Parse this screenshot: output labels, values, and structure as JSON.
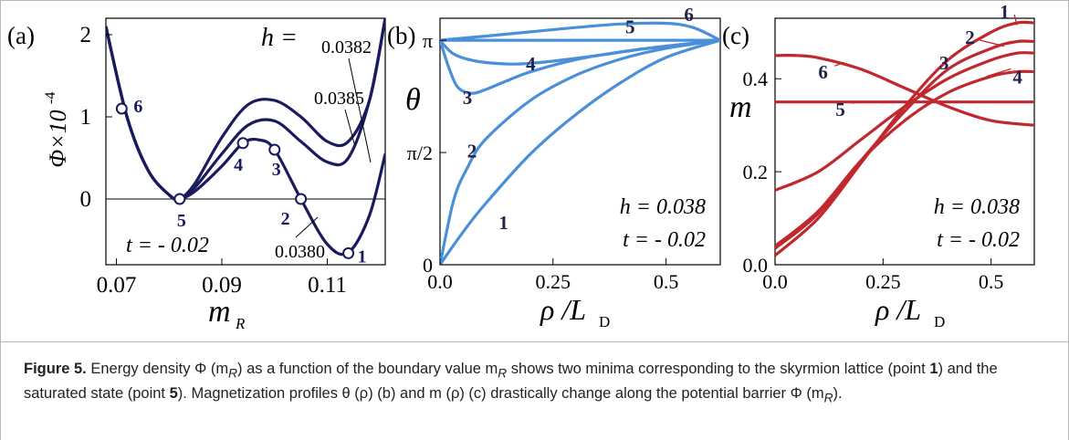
{
  "panels": [
    {
      "id": "a",
      "panel_label": "(a)",
      "xlabel_main": "m",
      "xlabel_sub": "R",
      "ylabel": "Φ×10",
      "ylabel_exp": "-4",
      "annotations": {
        "h_label": "h =",
        "h_values": [
          "0.0382",
          "0.0385",
          "0.0380"
        ],
        "t_label": "t = - 0.02"
      },
      "point_labels": [
        "1",
        "2",
        "3",
        "4",
        "5",
        "6"
      ]
    },
    {
      "id": "b",
      "panel_label": "(b)",
      "xlabel": "ρ /L",
      "xlabel_sub": "D",
      "ylabel": "θ",
      "annotations": {
        "h_text": "h = 0.038",
        "t_text": "t = - 0.02"
      },
      "curve_labels": [
        "1",
        "2",
        "3",
        "4",
        "5",
        "6"
      ]
    },
    {
      "id": "c",
      "panel_label": "(c)",
      "xlabel": "ρ /L",
      "xlabel_sub": "D",
      "ylabel": "m",
      "annotations": {
        "h_text": "h = 0.038",
        "t_text": "t = - 0.02"
      },
      "curve_labels": [
        "1",
        "2",
        "3",
        "4",
        "5",
        "6"
      ]
    }
  ],
  "chart_data": [
    {
      "type": "line",
      "panel": "a",
      "xlabel": "m_R",
      "ylabel": "Φ×10^-4",
      "xlim": [
        0.068,
        0.121
      ],
      "ylim": [
        -0.8,
        2.2
      ],
      "xticks": [
        "0.07",
        "0.09",
        "0.11"
      ],
      "yticks": [
        "0",
        "1",
        "2"
      ],
      "colors": {
        "curve": "#1a1a5e"
      },
      "series": [
        {
          "name": "0.0382",
          "x": [
            0.068,
            0.072,
            0.076,
            0.08,
            0.082,
            0.085,
            0.09,
            0.095,
            0.1,
            0.105,
            0.11,
            0.114,
            0.118,
            0.121
          ],
          "y": [
            2.1,
            1.0,
            0.35,
            0.05,
            0.0,
            0.15,
            0.55,
            0.9,
            0.95,
            0.7,
            0.45,
            0.5,
            1.2,
            2.2
          ]
        },
        {
          "name": "0.0385",
          "x": [
            0.068,
            0.072,
            0.076,
            0.08,
            0.082,
            0.085,
            0.09,
            0.095,
            0.1,
            0.105,
            0.11,
            0.114,
            0.118,
            0.121
          ],
          "y": [
            2.1,
            1.0,
            0.35,
            0.05,
            0.0,
            0.2,
            0.75,
            1.15,
            1.2,
            1.0,
            0.7,
            0.7,
            1.2,
            2.2
          ]
        },
        {
          "name": "0.0380",
          "x": [
            0.068,
            0.072,
            0.076,
            0.08,
            0.082,
            0.085,
            0.09,
            0.094,
            0.097,
            0.1,
            0.105,
            0.11,
            0.114,
            0.118,
            0.121
          ],
          "y": [
            2.1,
            1.0,
            0.35,
            0.05,
            0.0,
            0.1,
            0.4,
            0.68,
            0.72,
            0.6,
            0.0,
            -0.55,
            -0.65,
            -0.2,
            0.55
          ]
        }
      ],
      "points": [
        {
          "label": "1",
          "x": 0.114,
          "y": -0.66
        },
        {
          "label": "2",
          "x": 0.105,
          "y": 0.0
        },
        {
          "label": "3",
          "x": 0.1,
          "y": 0.6
        },
        {
          "label": "4",
          "x": 0.094,
          "y": 0.68
        },
        {
          "label": "5",
          "x": 0.082,
          "y": 0.0
        },
        {
          "label": "6",
          "x": 0.071,
          "y": 1.1
        }
      ]
    },
    {
      "type": "line",
      "panel": "b",
      "xlabel": "ρ/L_D",
      "ylabel": "θ",
      "xlim": [
        0,
        0.62
      ],
      "ylim": [
        0,
        3.45
      ],
      "xticks": [
        {
          "v": 0,
          "label": "0.0"
        },
        {
          "v": 0.25,
          "label": "0.25"
        },
        {
          "v": 0.5,
          "label": "0.5"
        }
      ],
      "yticks": [
        {
          "v": 0,
          "label": "0"
        },
        {
          "v": 1.5708,
          "label": "π/2"
        },
        {
          "v": 3.1416,
          "label": "π"
        }
      ],
      "colors": {
        "curve": "#4a90d9"
      },
      "series": [
        {
          "name": "1",
          "x": [
            0,
            0.05,
            0.1,
            0.2,
            0.3,
            0.4,
            0.5,
            0.62
          ],
          "y": [
            0,
            0.45,
            0.85,
            1.55,
            2.1,
            2.55,
            2.9,
            3.1416
          ]
        },
        {
          "name": "2",
          "x": [
            0,
            0.03,
            0.06,
            0.1,
            0.2,
            0.3,
            0.4,
            0.5,
            0.62
          ],
          "y": [
            0,
            0.9,
            1.35,
            1.75,
            2.3,
            2.65,
            2.88,
            3.03,
            3.1416
          ]
        },
        {
          "name": "3",
          "x": [
            0,
            0.02,
            0.04,
            0.07,
            0.1,
            0.15,
            0.2,
            0.3,
            0.4,
            0.5,
            0.62
          ],
          "y": [
            3.1416,
            2.75,
            2.48,
            2.4,
            2.45,
            2.58,
            2.7,
            2.87,
            2.98,
            3.06,
            3.1416
          ]
        },
        {
          "name": "4",
          "x": [
            0,
            0.03,
            0.08,
            0.15,
            0.2,
            0.25,
            0.35,
            0.45,
            0.55,
            0.62
          ],
          "y": [
            3.1416,
            2.95,
            2.85,
            2.81,
            2.82,
            2.85,
            2.93,
            3.02,
            3.09,
            3.1416
          ]
        },
        {
          "name": "5",
          "x": [
            0,
            0.62
          ],
          "y": [
            3.1416,
            3.1416
          ]
        },
        {
          "name": "6",
          "x": [
            0,
            0.1,
            0.2,
            0.3,
            0.4,
            0.5,
            0.56,
            0.62
          ],
          "y": [
            3.1416,
            3.2,
            3.26,
            3.32,
            3.37,
            3.38,
            3.32,
            3.1416
          ]
        }
      ]
    },
    {
      "type": "line",
      "panel": "c",
      "xlabel": "ρ/L_D",
      "ylabel": "m",
      "xlim": [
        0,
        0.6
      ],
      "ylim": [
        0,
        0.53
      ],
      "xticks": [
        {
          "v": 0,
          "label": "0.0"
        },
        {
          "v": 0.25,
          "label": "0.25"
        },
        {
          "v": 0.5,
          "label": "0.5"
        }
      ],
      "yticks": [
        {
          "v": 0,
          "label": "0.0"
        },
        {
          "v": 0.2,
          "label": "0.2"
        },
        {
          "v": 0.4,
          "label": "0.4"
        }
      ],
      "colors": {
        "curve": "#c0282d"
      },
      "series": [
        {
          "name": "1",
          "x": [
            0,
            0.1,
            0.2,
            0.3,
            0.4,
            0.5,
            0.56,
            0.6
          ],
          "y": [
            0.02,
            0.1,
            0.22,
            0.34,
            0.44,
            0.5,
            0.52,
            0.52
          ]
        },
        {
          "name": "2",
          "x": [
            0,
            0.1,
            0.2,
            0.3,
            0.4,
            0.5,
            0.56,
            0.6
          ],
          "y": [
            0.035,
            0.11,
            0.225,
            0.33,
            0.42,
            0.465,
            0.48,
            0.48
          ]
        },
        {
          "name": "3",
          "x": [
            0,
            0.1,
            0.2,
            0.3,
            0.4,
            0.5,
            0.56,
            0.6
          ],
          "y": [
            0.16,
            0.2,
            0.27,
            0.34,
            0.4,
            0.44,
            0.455,
            0.455
          ]
        },
        {
          "name": "4",
          "x": [
            0,
            0.1,
            0.2,
            0.3,
            0.4,
            0.5,
            0.56,
            0.6
          ],
          "y": [
            0.04,
            0.115,
            0.225,
            0.31,
            0.37,
            0.405,
            0.415,
            0.415
          ]
        },
        {
          "name": "5",
          "x": [
            0,
            0.6
          ],
          "y": [
            0.35,
            0.35
          ]
        },
        {
          "name": "6",
          "x": [
            0,
            0.05,
            0.1,
            0.2,
            0.3,
            0.4,
            0.5,
            0.6
          ],
          "y": [
            0.45,
            0.45,
            0.445,
            0.42,
            0.38,
            0.34,
            0.31,
            0.3
          ]
        }
      ]
    }
  ],
  "caption": {
    "figure_label": "Figure 5.",
    "text_1": " Energy density Φ (m",
    "sub_R": "R",
    "text_2": ") as a function of the boundary value m",
    "text_3": " shows two minima corresponding to the skyrmion lattice (point ",
    "bold_1": "1",
    "text_4": ") and the saturated state (point ",
    "bold_5": "5",
    "text_5": "). Magnetization profiles θ (ρ) (b) and m (ρ) (c) drastically change along the potential barrier Φ (m",
    "text_6": ")."
  }
}
